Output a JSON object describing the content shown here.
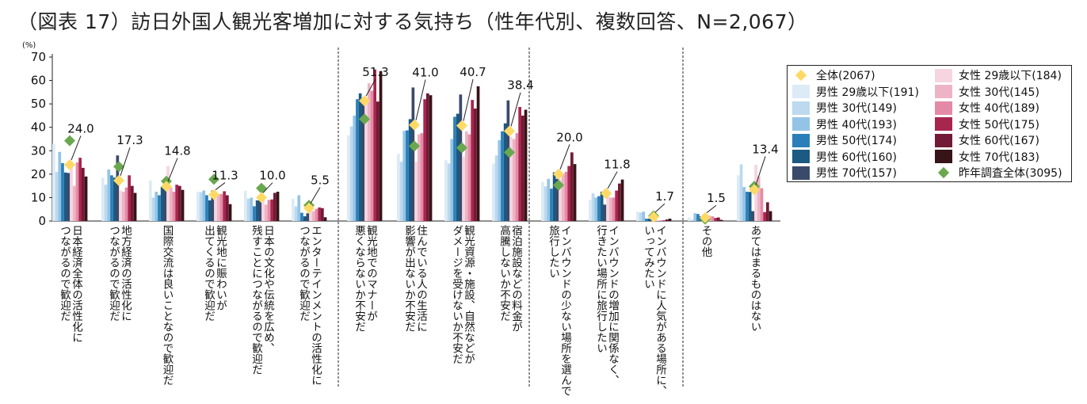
{
  "title": "（図表 17）訪日外国人観光客増加に対する気持ち（性年代別、複数回答、N=2,067）",
  "chart_data": {
    "type": "bar",
    "title": "（図表 17）訪日外国人観光客増加に対する気持ち（性年代別、複数回答、N=2,067）",
    "ylabel": "(%)",
    "ylim": [
      0,
      70
    ],
    "yticks": [
      0,
      10,
      20,
      30,
      40,
      50,
      60,
      70
    ],
    "grid": false,
    "legend_position": "right",
    "categories": [
      "日本経済全体の活性化に\nつながるので歓迎だ",
      "地方経済の活性化に\nつながるので歓迎だ",
      "国際交流は良いことなので歓迎だ",
      "観光地に賑わいが\n出てくるので歓迎だ",
      "日本の文化や伝統を広め、\n残すことにつながるので歓迎だ",
      "エンターテインメントの活性化に\nつながるので歓迎だ",
      "観光地でのマナーが\n悪くならないか不安だ",
      "住んでいる人の生活に\n影響が出ないか不安だ",
      "観光資源・施設、自然などが\nダメージを受けないか不安だ",
      "宿泊施設などの料金が\n高騰しないか不安だ",
      "インバウンドの少ない場所を選んで\n旅行したい",
      "インバウンドの増加に関係なく、\n行きたい場所に旅行したい",
      "インバウンドに人気がある場所に、\nいってみたい",
      "その他",
      "あてはまるものはない"
    ],
    "series": [
      {
        "name": "男性 29歳以下(191)",
        "color": "#dcebf6",
        "values": [
          33,
          18.5,
          17.3,
          12.5,
          13,
          9.5,
          36.6,
          28.7,
          26,
          24.5,
          16.7,
          9,
          4,
          1.5,
          19.5
        ]
      },
      {
        "name": "男性 30代(149)",
        "color": "#bcd9ef",
        "values": [
          21,
          15.5,
          10,
          12.3,
          9.5,
          6.2,
          40.4,
          25.3,
          24.5,
          28,
          14.8,
          11.8,
          3.6,
          0.5,
          24.2
        ]
      },
      {
        "name": "男性 40代(193)",
        "color": "#93c4e6",
        "values": [
          29.5,
          22,
          12.5,
          13,
          10,
          11,
          45,
          38.5,
          35,
          34.5,
          18,
          10,
          4,
          3.3,
          14.5
        ]
      },
      {
        "name": "男性 50代(174)",
        "color": "#2a7fba",
        "values": [
          24.7,
          19.5,
          11,
          11,
          6.3,
          3.5,
          52,
          38.7,
          44.5,
          38.3,
          13.8,
          10.6,
          1,
          3,
          12.5
        ]
      },
      {
        "name": "男性 60代(160)",
        "color": "#1b5a82",
        "values": [
          20.7,
          18.5,
          14.5,
          8.8,
          8.8,
          2,
          54.5,
          43.5,
          45.8,
          41.7,
          20.8,
          12.5,
          1,
          2,
          12.4
        ]
      },
      {
        "name": "男性 70代(157)",
        "color": "#3a4a6a",
        "values": [
          20.5,
          28,
          14,
          13,
          9,
          3.3,
          52,
          57,
          54,
          51.5,
          18,
          7,
          0.5,
          0.5,
          4.2
        ]
      },
      {
        "name": "女性 29歳以下(184)",
        "color": "#f6d5e0",
        "values": [
          25.5,
          13,
          23.5,
          11.5,
          9,
          5,
          51,
          25.3,
          27.5,
          36,
          18,
          10.5,
          0.5,
          0.8,
          24
        ]
      },
      {
        "name": "女性 30代(145)",
        "color": "#eeb4c6",
        "values": [
          15,
          12.5,
          14.3,
          11.5,
          7,
          4.2,
          58.8,
          37,
          38.3,
          35,
          20,
          10,
          0.2,
          2.3,
          19
        ]
      },
      {
        "name": "女性 40代(189)",
        "color": "#e58aa6",
        "values": [
          25,
          14.3,
          12.5,
          11.5,
          9,
          5.2,
          55.6,
          37.5,
          37,
          37.5,
          21,
          10,
          0.3,
          2,
          14
        ]
      },
      {
        "name": "女性 50代(175)",
        "color": "#a8254e",
        "values": [
          27,
          19.5,
          15.5,
          12.7,
          9.2,
          5.8,
          64.7,
          52,
          51.7,
          48.7,
          23.5,
          13,
          0.3,
          1.3,
          3.8
        ]
      },
      {
        "name": "女性 60代(167)",
        "color": "#721a36",
        "values": [
          22.7,
          15,
          15,
          11,
          12,
          5.5,
          51,
          54.5,
          48,
          45,
          29.3,
          16,
          0.7,
          1.5,
          8
        ]
      },
      {
        "name": "女性 70代(183)",
        "color": "#361418",
        "values": [
          19,
          12,
          13.3,
          7.2,
          12.5,
          1.6,
          64,
          53.7,
          57.5,
          47.5,
          24.3,
          17.7,
          1,
          0.5,
          4.2
        ]
      }
    ],
    "markers": [
      {
        "name": "全体(2067)",
        "color": "#ffd966",
        "values": [
          24.0,
          17.3,
          14.8,
          11.3,
          10.0,
          5.5,
          51.3,
          41.0,
          40.7,
          38.4,
          20.0,
          11.8,
          1.7,
          1.5,
          13.4
        ],
        "labels": [
          "24.0",
          "17.3",
          "14.8",
          "11.3",
          "10.0",
          "5.5",
          "51.3",
          "41.0",
          "40.7",
          "38.4",
          "20.0",
          "11.8",
          "1.7",
          "1.5",
          "13.4"
        ]
      },
      {
        "name": "昨年調査全体(3095)",
        "color": "#6aa84f",
        "values": [
          34.3,
          23.2,
          17,
          17.8,
          14,
          6.7,
          43.5,
          32,
          31.3,
          29.3,
          15.3,
          11.8,
          2.2,
          0.8,
          14.8
        ]
      }
    ]
  }
}
